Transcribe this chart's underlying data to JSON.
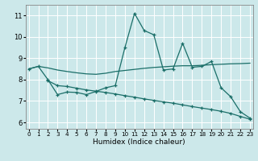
{
  "xlabel": "Humidex (Indice chaleur)",
  "background_color": "#cce8ea",
  "grid_color": "#ffffff",
  "line_color": "#1a6e68",
  "x_ticks": [
    0,
    1,
    2,
    3,
    4,
    5,
    6,
    7,
    8,
    9,
    10,
    11,
    12,
    13,
    14,
    15,
    16,
    17,
    18,
    19,
    20,
    21,
    22,
    23
  ],
  "ylim": [
    5.7,
    11.5
  ],
  "xlim": [
    -0.3,
    23.3
  ],
  "y_ticks": [
    6,
    7,
    8,
    9,
    10,
    11
  ],
  "line1_x": [
    0,
    1,
    2,
    3,
    4,
    5,
    6,
    7,
    8,
    9,
    10,
    11,
    12,
    13,
    14,
    15,
    16,
    17,
    18,
    19,
    20,
    21,
    22,
    23
  ],
  "line1_y": [
    8.5,
    8.62,
    8.0,
    7.3,
    7.42,
    7.4,
    7.3,
    7.45,
    7.62,
    7.72,
    9.5,
    11.1,
    10.3,
    10.1,
    8.45,
    8.5,
    9.7,
    8.58,
    8.62,
    8.85,
    7.62,
    7.2,
    6.5,
    6.2
  ],
  "line2_x": [
    0,
    1,
    2,
    3,
    4,
    5,
    6,
    7,
    8,
    9,
    10,
    11,
    12,
    13,
    14,
    15,
    16,
    17,
    18,
    19,
    20,
    21,
    22,
    23
  ],
  "line2_y": [
    8.5,
    8.62,
    8.55,
    8.45,
    8.38,
    8.32,
    8.27,
    8.25,
    8.3,
    8.38,
    8.43,
    8.48,
    8.53,
    8.57,
    8.6,
    8.63,
    8.65,
    8.65,
    8.67,
    8.7,
    8.72,
    8.74,
    8.75,
    8.77
  ],
  "line3_x": [
    2,
    3,
    4,
    5,
    6,
    7,
    8,
    9,
    10,
    11,
    12,
    13,
    14,
    15,
    16,
    17,
    18,
    19,
    20,
    21,
    22,
    23
  ],
  "line3_y": [
    7.95,
    7.72,
    7.68,
    7.6,
    7.52,
    7.46,
    7.4,
    7.33,
    7.25,
    7.18,
    7.1,
    7.03,
    6.96,
    6.9,
    6.82,
    6.74,
    6.67,
    6.6,
    6.52,
    6.42,
    6.28,
    6.15
  ]
}
